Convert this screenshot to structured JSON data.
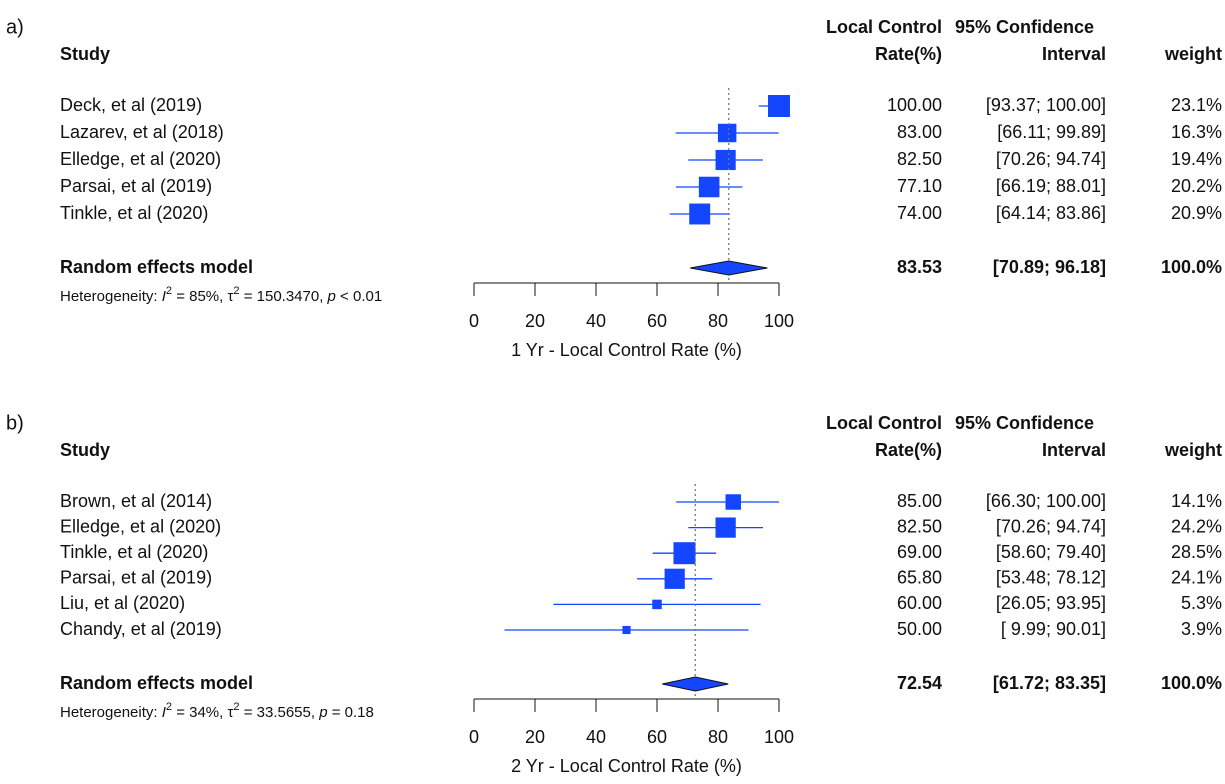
{
  "chart_data": [
    {
      "type": "forest",
      "panel_label": "a)",
      "headers": {
        "study": "Study",
        "rate": [
          "Local Control",
          "Rate(%)"
        ],
        "ci": [
          "95% Confidence",
          "Interval"
        ],
        "weight": "weight"
      },
      "categories": [
        "Deck, et al (2019)",
        "Lazarev, et al (2018)",
        "Elledge, et al (2020)",
        "Parsai, et al (2019)",
        "Tinkle, et al (2020)"
      ],
      "values": [
        100,
        83,
        82.5,
        77.1,
        74
      ],
      "value_labels": [
        "100.00",
        "83.00",
        "82.50",
        "77.10",
        "74.00"
      ],
      "ci_lower": [
        93.37,
        66.11,
        70.26,
        66.19,
        64.14
      ],
      "ci_upper": [
        100,
        99.89,
        94.74,
        88.01,
        83.86
      ],
      "ci_labels": [
        "[93.37; 100.00]",
        "[66.11; 99.89]",
        "[70.26; 94.74]",
        "[66.19; 88.01]",
        "[64.14; 83.86]"
      ],
      "weights": [
        23.1,
        16.3,
        19.4,
        20.2,
        20.9
      ],
      "weight_labels": [
        "23.1%",
        "16.3%",
        "19.4%",
        "20.2%",
        "20.9%"
      ],
      "summary": {
        "name": "Random effects model",
        "value": 83.53,
        "value_label": "83.53",
        "ci_lower": 70.89,
        "ci_upper": 96.18,
        "ci_label": "[70.89; 96.18]",
        "weight": 100,
        "weight_label": "100.0%"
      },
      "heterogeneity": [
        {
          "text": "Heterogeneity: "
        },
        {
          "text": "I",
          "italic": true
        },
        {
          "text": "2",
          "sup": true
        },
        {
          "text": " = 85%, "
        },
        {
          "text": "τ"
        },
        {
          "text": "2",
          "sup": true
        },
        {
          "text": " = 150.3470, "
        },
        {
          "text": "p",
          "italic": true
        },
        {
          "text": " < 0.01"
        }
      ],
      "xlim": [
        0,
        100
      ],
      "xticks": [
        0,
        20,
        40,
        60,
        80,
        100
      ],
      "xlabel": "1 Yr - Local Control Rate (%)",
      "color": "#1446ff"
    },
    {
      "type": "forest",
      "panel_label": "b)",
      "headers": {
        "study": "Study",
        "rate": [
          "Local Control",
          "Rate(%)"
        ],
        "ci": [
          "95% Confidence",
          "Interval"
        ],
        "weight": "weight"
      },
      "categories": [
        "Brown, et al (2014)",
        "Elledge, et al (2020)",
        "Tinkle, et al (2020)",
        "Parsai, et al (2019)",
        "Liu, et al (2020)",
        "Chandy, et al (2019)"
      ],
      "values": [
        85,
        82.5,
        69,
        65.8,
        60,
        50
      ],
      "value_labels": [
        "85.00",
        "82.50",
        "69.00",
        "65.80",
        "60.00",
        "50.00"
      ],
      "ci_lower": [
        66.3,
        70.26,
        58.6,
        53.48,
        26.05,
        9.99
      ],
      "ci_upper": [
        100,
        94.74,
        79.4,
        78.12,
        93.95,
        90.01
      ],
      "ci_labels": [
        "[66.30; 100.00]",
        "[70.26; 94.74]",
        "[58.60; 79.40]",
        "[53.48; 78.12]",
        "[26.05; 93.95]",
        "[ 9.99; 90.01]"
      ],
      "weights": [
        14.1,
        24.2,
        28.5,
        24.1,
        5.3,
        3.9
      ],
      "weight_labels": [
        "14.1%",
        "24.2%",
        "28.5%",
        "24.1%",
        "5.3%",
        "3.9%"
      ],
      "summary": {
        "name": "Random effects model",
        "value": 72.54,
        "value_label": "72.54",
        "ci_lower": 61.72,
        "ci_upper": 83.35,
        "ci_label": "[61.72; 83.35]",
        "weight": 100,
        "weight_label": "100.0%"
      },
      "heterogeneity": [
        {
          "text": "Heterogeneity: "
        },
        {
          "text": "I",
          "italic": true
        },
        {
          "text": "2",
          "sup": true
        },
        {
          "text": " = 34%, "
        },
        {
          "text": "τ"
        },
        {
          "text": "2",
          "sup": true
        },
        {
          "text": " = 33.5655, "
        },
        {
          "text": "p",
          "italic": true
        },
        {
          "text": " = 0.18"
        }
      ],
      "xlim": [
        0,
        100
      ],
      "xticks": [
        0,
        20,
        40,
        60,
        80,
        100
      ],
      "xlabel": "2 Yr - Local Control Rate (%)",
      "color": "#1446ff"
    }
  ]
}
